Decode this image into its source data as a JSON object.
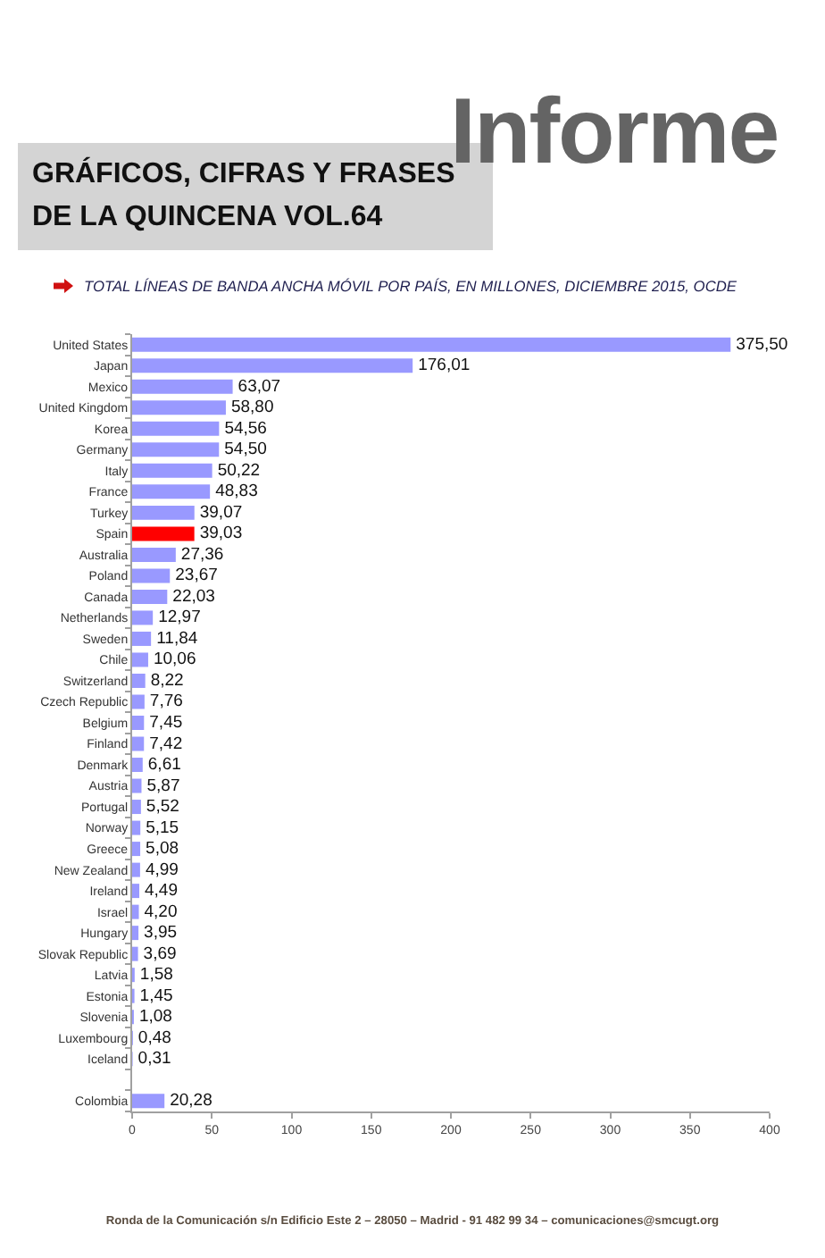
{
  "chart_data": {
    "type": "bar",
    "orientation": "horizontal",
    "title": "GRÁFICOS, CIFRAS Y FRASES DE LA QUINCENA VOL.64",
    "subtitle": "TOTAL LÍNEAS DE BANDA ANCHA MÓVIL POR PAÍS, EN MILLONES, DICIEMBRE 2015, OCDE",
    "annotations": [
      "Informe",
      "Ronda de la Comunicación s/n Edificio Este 2 – 28050 – Madrid - 91 482 99 34 – comunicaciones@smcugt.org"
    ],
    "categories": [
      "United States",
      "Japan",
      "Mexico",
      "United Kingdom",
      "Korea",
      "Germany",
      "Italy",
      "France",
      "Turkey",
      "Spain",
      "Australia",
      "Poland",
      "Canada",
      "Netherlands",
      "Sweden",
      "Chile",
      "Switzerland",
      "Czech Republic",
      "Belgium",
      "Finland",
      "Denmark",
      "Austria",
      "Portugal",
      "Norway",
      "Greece",
      "New Zealand",
      "Ireland",
      "Israel",
      "Hungary",
      "Slovak Republic",
      "Latvia",
      "Estonia",
      "Slovenia",
      "Luxembourg",
      "Iceland",
      null,
      "Colombia"
    ],
    "values": [
      375.5,
      176.01,
      63.07,
      58.8,
      54.56,
      54.5,
      50.22,
      48.83,
      39.07,
      39.03,
      27.36,
      23.67,
      22.03,
      12.97,
      11.84,
      10.06,
      8.22,
      7.76,
      7.45,
      7.42,
      6.61,
      5.87,
      5.52,
      5.15,
      5.08,
      4.99,
      4.49,
      4.2,
      3.95,
      3.69,
      1.58,
      1.45,
      1.08,
      0.48,
      0.31,
      null,
      20.28
    ],
    "colors": [
      "#9999ff",
      "#9999ff",
      "#9999ff",
      "#9999ff",
      "#9999ff",
      "#9999ff",
      "#9999ff",
      "#9999ff",
      "#9999ff",
      "#ff0000",
      "#9999ff",
      "#9999ff",
      "#9999ff",
      "#9999ff",
      "#9999ff",
      "#9999ff",
      "#9999ff",
      "#9999ff",
      "#9999ff",
      "#9999ff",
      "#9999ff",
      "#9999ff",
      "#9999ff",
      "#9999ff",
      "#9999ff",
      "#9999ff",
      "#9999ff",
      "#9999ff",
      "#9999ff",
      "#9999ff",
      "#9999ff",
      "#9999ff",
      "#9999ff",
      "#9999ff",
      "#9999ff",
      null,
      "#9999ff"
    ],
    "value_labels": [
      "375,50",
      "176,01",
      "63,07",
      "58,80",
      "54,56",
      "54,50",
      "50,22",
      "48,83",
      "39,07",
      "39,03",
      "27,36",
      "23,67",
      "22,03",
      "12,97",
      "11,84",
      "10,06",
      "8,22",
      "7,76",
      "7,45",
      "7,42",
      "6,61",
      "5,87",
      "5,52",
      "5,15",
      "5,08",
      "4,99",
      "4,49",
      "4,20",
      "3,95",
      "3,69",
      "1,58",
      "1,45",
      "1,08",
      "0,48",
      "0,31",
      null,
      "20,28"
    ],
    "xlim": [
      0,
      400
    ],
    "xticks": [
      0,
      50,
      100,
      150,
      200,
      250,
      300,
      350,
      400
    ]
  }
}
